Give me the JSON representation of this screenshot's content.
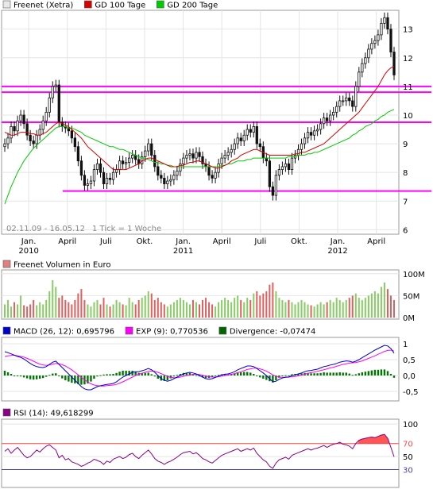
{
  "chart_data": [
    {
      "type": "candlestick",
      "legend": [
        {
          "name": "Freenet (Xetra)",
          "color": "#e8e8e8"
        },
        {
          "name": "GD 100 Tage",
          "color": "#d80000"
        },
        {
          "name": "GD 200 Tage",
          "color": "#00cc00"
        }
      ],
      "date_range_label": "02.11.09 - 16.05.12",
      "interval_label": "1 Tick = 1 Woche",
      "x_tick_labels": [
        {
          "label": "Jan.",
          "year": "2010",
          "x": 2010.0
        },
        {
          "label": "April",
          "year": "",
          "x": 2010.25
        },
        {
          "label": "Juli",
          "year": "",
          "x": 2010.5
        },
        {
          "label": "Okt.",
          "year": "",
          "x": 2010.75
        },
        {
          "label": "Jan.",
          "year": "2011",
          "x": 2011.0
        },
        {
          "label": "April",
          "year": "",
          "x": 2011.25
        },
        {
          "label": "Juli",
          "year": "",
          "x": 2011.5
        },
        {
          "label": "Okt.",
          "year": "",
          "x": 2011.75
        },
        {
          "label": "Jan.",
          "year": "2012",
          "x": 2012.0
        },
        {
          "label": "April",
          "year": "",
          "x": 2012.25
        }
      ],
      "x_range": [
        2009.835,
        2012.375
      ],
      "y_ticks": [
        6,
        7,
        8,
        9,
        10,
        11,
        12,
        13
      ],
      "ylim": [
        5.9,
        13.6
      ],
      "horizontal_lines": [
        11.0,
        10.8,
        9.75,
        7.35
      ],
      "horizontal_line_color": "#ff00ff",
      "series": [
        {
          "name": "Freenet (Xetra)",
          "close": [
            9.0,
            9.2,
            9.6,
            9.45,
            9.8,
            10.0,
            9.7,
            9.3,
            9.1,
            9.0,
            9.3,
            9.5,
            9.8,
            10.1,
            10.6,
            11.0,
            11.05,
            9.75,
            9.6,
            9.55,
            9.45,
            9.2,
            8.9,
            8.4,
            7.9,
            7.55,
            7.6,
            7.7,
            8.1,
            8.3,
            8.0,
            7.6,
            7.8,
            7.75,
            8.0,
            8.1,
            8.4,
            8.3,
            8.35,
            8.5,
            8.6,
            8.45,
            8.3,
            8.55,
            8.75,
            9.0,
            8.6,
            8.2,
            7.9,
            7.8,
            7.6,
            7.7,
            7.75,
            7.9,
            8.05,
            8.3,
            8.5,
            8.6,
            8.65,
            8.5,
            8.7,
            8.55,
            8.3,
            8.2,
            7.9,
            7.8,
            8.0,
            8.3,
            8.5,
            8.6,
            8.7,
            8.8,
            9.0,
            9.2,
            9.1,
            9.3,
            9.5,
            9.4,
            9.6,
            9.0,
            8.9,
            8.5,
            8.4,
            7.5,
            7.2,
            7.9,
            8.1,
            8.2,
            8.3,
            8.1,
            8.5,
            8.6,
            8.8,
            9.0,
            9.2,
            9.4,
            9.3,
            9.45,
            9.5,
            9.7,
            9.9,
            9.8,
            10.0,
            10.1,
            10.3,
            10.5,
            10.5,
            10.6,
            10.5,
            10.3,
            11.0,
            11.5,
            11.8,
            12.0,
            12.3,
            12.5,
            12.6,
            12.8,
            13.2,
            13.4,
            13.0,
            12.2,
            11.4
          ]
        },
        {
          "name": "GD 100 Tage",
          "values": [
            9.4,
            9.35,
            9.3,
            9.3,
            9.35,
            9.4,
            9.4,
            9.4,
            9.35,
            9.35,
            9.3,
            9.3,
            9.35,
            9.4,
            9.5,
            9.6,
            9.7,
            9.75,
            9.7,
            9.65,
            9.6,
            9.5,
            9.4,
            9.3,
            9.2,
            9.05,
            8.9,
            8.8,
            8.7,
            8.6,
            8.5,
            8.4,
            8.3,
            8.2,
            8.1,
            8.1,
            8.1,
            8.1,
            8.1,
            8.15,
            8.2,
            8.25,
            8.3,
            8.4,
            8.45,
            8.5,
            8.5,
            8.45,
            8.4,
            8.35,
            8.3,
            8.25,
            8.2,
            8.2,
            8.2,
            8.25,
            8.25,
            8.3,
            8.35,
            8.35,
            8.4,
            8.4,
            8.35,
            8.3,
            8.25,
            8.2,
            8.15,
            8.15,
            8.2,
            8.25,
            8.3,
            8.4,
            8.45,
            8.5,
            8.6,
            8.65,
            8.7,
            8.75,
            8.8,
            8.8,
            8.75,
            8.7,
            8.65,
            8.6,
            8.6,
            8.6,
            8.6,
            8.6,
            8.6,
            8.6,
            8.6,
            8.65,
            8.65,
            8.7,
            8.7,
            8.75,
            8.8,
            8.85,
            8.9,
            8.95,
            9.0,
            9.1,
            9.2,
            9.3,
            9.4,
            9.5,
            9.6,
            9.7,
            9.8,
            9.9,
            10.0,
            10.1,
            10.25,
            10.4,
            10.55,
            10.7,
            10.85,
            11.0,
            11.2,
            11.4,
            11.55,
            11.65,
            11.7
          ]
        },
        {
          "name": "GD 200 Tage",
          "values": [
            6.9,
            7.2,
            7.5,
            7.75,
            8.0,
            8.2,
            8.4,
            8.55,
            8.7,
            8.85,
            8.95,
            9.05,
            9.15,
            9.25,
            9.35,
            9.45,
            9.55,
            9.6,
            9.6,
            9.6,
            9.55,
            9.55,
            9.5,
            9.45,
            9.4,
            9.3,
            9.25,
            9.2,
            9.15,
            9.1,
            9.05,
            9.0,
            8.95,
            8.9,
            8.9,
            8.85,
            8.8,
            8.8,
            8.75,
            8.7,
            8.65,
            8.6,
            8.55,
            8.5,
            8.5,
            8.45,
            8.4,
            8.35,
            8.35,
            8.3,
            8.3,
            8.25,
            8.25,
            8.2,
            8.2,
            8.2,
            8.2,
            8.2,
            8.2,
            8.2,
            8.2,
            8.2,
            8.2,
            8.2,
            8.2,
            8.2,
            8.2,
            8.2,
            8.25,
            8.25,
            8.3,
            8.3,
            8.35,
            8.4,
            8.4,
            8.4,
            8.45,
            8.45,
            8.5,
            8.5,
            8.5,
            8.5,
            8.5,
            8.5,
            8.5,
            8.5,
            8.5,
            8.5,
            8.5,
            8.55,
            8.55,
            8.55,
            8.6,
            8.6,
            8.6,
            8.65,
            8.65,
            8.7,
            8.7,
            8.75,
            8.8,
            8.85,
            8.9,
            8.95,
            9.0,
            9.05,
            9.1,
            9.15,
            9.2,
            9.3,
            9.35,
            9.45,
            9.5,
            9.6,
            9.65,
            9.7,
            9.8,
            9.85,
            9.95,
            10.0,
            10.1,
            10.15,
            10.2
          ]
        }
      ]
    },
    {
      "type": "bar",
      "legend": [
        {
          "name": "Freenet Volumen in Euro",
          "color": "#e08080"
        }
      ],
      "y_tick_labels": [
        {
          "label": "100M",
          "y": 100
        },
        {
          "label": "50M",
          "y": 50
        },
        {
          "label": "0M",
          "y": 0
        }
      ],
      "ylim": [
        0,
        105
      ],
      "up_color": "#88cc66",
      "down_color": "#e06060",
      "series": [
        {
          "name": "Freenet Volumen in Euro",
          "values": [
            30,
            40,
            25,
            35,
            30,
            50,
            28,
            25,
            30,
            40,
            28,
            35,
            30,
            40,
            60,
            85,
            70,
            45,
            50,
            40,
            35,
            30,
            40,
            55,
            65,
            40,
            30,
            25,
            35,
            40,
            30,
            45,
            30,
            25,
            30,
            40,
            35,
            30,
            28,
            45,
            35,
            30,
            40,
            45,
            50,
            60,
            55,
            40,
            45,
            35,
            30,
            25,
            30,
            35,
            40,
            45,
            40,
            35,
            30,
            40,
            35,
            30,
            40,
            45,
            35,
            30,
            25,
            35,
            40,
            45,
            40,
            35,
            45,
            50,
            40,
            35,
            45,
            40,
            55,
            60,
            50,
            55,
            60,
            75,
            80,
            60,
            45,
            40,
            35,
            40,
            35,
            30,
            35,
            40,
            35,
            30,
            28,
            25,
            30,
            35,
            30,
            35,
            40,
            35,
            45,
            40,
            35,
            40,
            45,
            50,
            55,
            45,
            40,
            45,
            50,
            55,
            60,
            55,
            70,
            80,
            65,
            50,
            40
          ]
        }
      ]
    },
    {
      "type": "line",
      "legend": [
        {
          "name": "MACD (26, 12): 0,695796",
          "color": "#0000cc"
        },
        {
          "name": "EXP (9): 0,770536",
          "color": "#ff00ff"
        },
        {
          "name": "Divergence: -0,07474",
          "color": "#006600"
        }
      ],
      "y_tick_labels": [
        {
          "label": "1",
          "y": 1.0
        },
        {
          "label": "0,5",
          "y": 0.5
        },
        {
          "label": "0,0",
          "y": 0.0
        },
        {
          "label": "-0,5",
          "y": -0.5
        }
      ],
      "ylim": [
        -0.75,
        1.15
      ],
      "series": [
        {
          "name": "MACD",
          "values": [
            0.75,
            0.72,
            0.68,
            0.64,
            0.6,
            0.57,
            0.52,
            0.45,
            0.38,
            0.32,
            0.28,
            0.26,
            0.25,
            0.28,
            0.35,
            0.42,
            0.45,
            0.35,
            0.25,
            0.15,
            0.05,
            -0.05,
            -0.15,
            -0.25,
            -0.35,
            -0.42,
            -0.45,
            -0.45,
            -0.4,
            -0.35,
            -0.32,
            -0.3,
            -0.28,
            -0.27,
            -0.25,
            -0.2,
            -0.12,
            -0.05,
            0.0,
            0.05,
            0.1,
            0.12,
            0.12,
            0.15,
            0.18,
            0.22,
            0.18,
            0.1,
            0.0,
            -0.1,
            -0.15,
            -0.18,
            -0.15,
            -0.1,
            -0.05,
            0.0,
            0.05,
            0.08,
            0.1,
            0.08,
            0.05,
            0.0,
            -0.05,
            -0.1,
            -0.12,
            -0.1,
            -0.06,
            -0.02,
            0.02,
            0.04,
            0.05,
            0.08,
            0.12,
            0.18,
            0.22,
            0.26,
            0.3,
            0.3,
            0.28,
            0.22,
            0.15,
            0.08,
            0.0,
            -0.1,
            -0.2,
            -0.18,
            -0.12,
            -0.08,
            -0.05,
            -0.05,
            0.0,
            0.02,
            0.05,
            0.08,
            0.12,
            0.15,
            0.16,
            0.18,
            0.2,
            0.24,
            0.28,
            0.3,
            0.33,
            0.35,
            0.38,
            0.42,
            0.44,
            0.46,
            0.45,
            0.42,
            0.45,
            0.5,
            0.56,
            0.62,
            0.68,
            0.74,
            0.8,
            0.85,
            0.9,
            0.95,
            0.93,
            0.85,
            0.7
          ]
        },
        {
          "name": "EXP",
          "values": [
            0.6,
            0.62,
            0.63,
            0.64,
            0.62,
            0.6,
            0.58,
            0.54,
            0.5,
            0.45,
            0.4,
            0.36,
            0.33,
            0.32,
            0.33,
            0.36,
            0.38,
            0.37,
            0.34,
            0.3,
            0.24,
            0.18,
            0.1,
            0.02,
            -0.06,
            -0.14,
            -0.2,
            -0.26,
            -0.3,
            -0.32,
            -0.33,
            -0.33,
            -0.32,
            -0.31,
            -0.3,
            -0.28,
            -0.24,
            -0.2,
            -0.15,
            -0.1,
            -0.05,
            0.0,
            0.04,
            0.07,
            0.1,
            0.13,
            0.14,
            0.13,
            0.1,
            0.06,
            0.02,
            -0.03,
            -0.06,
            -0.07,
            -0.07,
            -0.05,
            -0.03,
            0.0,
            0.02,
            0.03,
            0.04,
            0.03,
            0.01,
            -0.02,
            -0.04,
            -0.05,
            -0.05,
            -0.04,
            -0.02,
            0.0,
            0.02,
            0.04,
            0.06,
            0.09,
            0.12,
            0.15,
            0.19,
            0.21,
            0.23,
            0.23,
            0.21,
            0.18,
            0.14,
            0.08,
            0.02,
            -0.03,
            -0.05,
            -0.06,
            -0.06,
            -0.05,
            -0.04,
            -0.03,
            -0.01,
            0.01,
            0.04,
            0.07,
            0.09,
            0.11,
            0.13,
            0.16,
            0.18,
            0.21,
            0.24,
            0.26,
            0.29,
            0.32,
            0.35,
            0.37,
            0.39,
            0.4,
            0.41,
            0.43,
            0.46,
            0.5,
            0.54,
            0.58,
            0.62,
            0.67,
            0.71,
            0.76,
            0.79,
            0.8,
            0.77
          ]
        }
      ]
    },
    {
      "type": "line",
      "legend": [
        {
          "name": "RSI (14): 49,618299",
          "color": "#880088"
        }
      ],
      "y_tick_labels": [
        {
          "label": "100",
          "y": 100
        },
        {
          "label": "70",
          "y": 70
        },
        {
          "label": "50",
          "y": 50
        },
        {
          "label": "30",
          "y": 30
        }
      ],
      "ylim": [
        5,
        105
      ],
      "overbought": 70,
      "oversold": 30,
      "overbought_color": "#ff4444",
      "oversold_color": "#4444aa",
      "series": [
        {
          "name": "RSI (14)",
          "values": [
            58,
            62,
            55,
            60,
            64,
            58,
            52,
            48,
            50,
            55,
            60,
            57,
            62,
            66,
            68,
            64,
            60,
            48,
            52,
            45,
            47,
            42,
            40,
            38,
            35,
            37,
            40,
            42,
            46,
            44,
            42,
            38,
            43,
            41,
            46,
            48,
            50,
            47,
            49,
            53,
            55,
            50,
            47,
            52,
            56,
            60,
            54,
            47,
            43,
            41,
            38,
            41,
            43,
            46,
            49,
            53,
            56,
            57,
            58,
            54,
            56,
            52,
            47,
            45,
            42,
            40,
            44,
            48,
            52,
            54,
            56,
            58,
            60,
            62,
            58,
            60,
            62,
            60,
            63,
            55,
            50,
            45,
            42,
            35,
            32,
            40,
            45,
            47,
            49,
            46,
            52,
            54,
            56,
            58,
            60,
            62,
            60,
            62,
            63,
            65,
            67,
            64,
            67,
            69,
            70,
            72,
            69,
            68,
            66,
            62,
            70,
            75,
            77,
            78,
            79,
            80,
            79,
            81,
            83,
            84,
            78,
            64,
            49.6
          ]
        }
      ]
    }
  ]
}
